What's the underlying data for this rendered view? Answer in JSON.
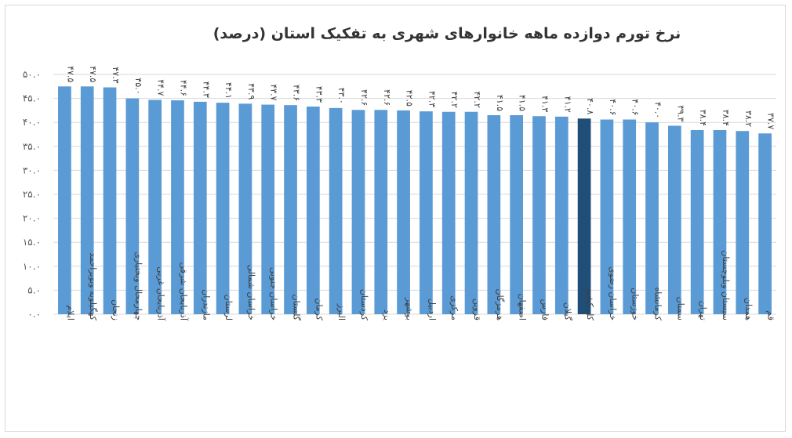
{
  "chart_data": {
    "type": "bar",
    "title": "نرخ تورم دوازده ماهه خانوارهای شهری به تفکیک استان (درصد)",
    "xlabel": "",
    "ylabel": "",
    "ylim": [
      0,
      50
    ],
    "grid": true,
    "legend": "none",
    "y_ticks": [
      "۵۰.۰",
      "۴۵.۰",
      "۴۰.۰",
      "۳۵.۰",
      "۳۰.۰",
      "۲۵.۰",
      "۲۰.۰",
      "۱۵.۰",
      "۱۰.۰",
      "۵.۰",
      "۰.۰"
    ],
    "y_tick_values": [
      50,
      45,
      40,
      35,
      30,
      25,
      20,
      15,
      10,
      5,
      0
    ],
    "categories": [
      "ایلام",
      "کهگیلویه وبویراحمد",
      "زنجان",
      "چهارمحال وبختیاری",
      "آذربایجان غربی",
      "آذربایجان شرقی",
      "مازندران",
      "لرستان",
      "خراسان شمالی",
      "خراسان جنوبی",
      "گلستان",
      "کرمان",
      "البرز",
      "کردستان",
      "یزد",
      "بوشهر",
      "اردبیل",
      "مرکزی",
      "قزوین",
      "هرمزگان",
      "اصفهان",
      "فارس",
      "گیلان",
      "کل کشور",
      "خراسان رضوی",
      "خوزستان",
      "کرمانشاه",
      "سمنان",
      "تهران",
      "سیستان وبلوچستان",
      "همدان",
      "قم"
    ],
    "values": [
      47.5,
      47.5,
      47.3,
      45.0,
      44.7,
      44.6,
      44.3,
      44.1,
      43.9,
      43.7,
      43.6,
      43.3,
      43.0,
      42.6,
      42.6,
      42.5,
      42.3,
      42.2,
      42.2,
      41.5,
      41.5,
      41.3,
      41.2,
      40.8,
      40.6,
      40.6,
      40.0,
      39.3,
      38.4,
      38.4,
      38.2,
      37.7
    ],
    "data_labels": [
      "۴۷.۵",
      "۴۷.۵",
      "۴۷.۳",
      "۴۵.۰",
      "۴۴.۷",
      "۴۴.۶",
      "۴۴.۳",
      "۴۴.۱",
      "۴۳.۹",
      "۴۳.۷",
      "۴۳.۶",
      "۴۳.۳",
      "۴۳.۰",
      "۴۲.۶",
      "۴۲.۶",
      "۴۲.۵",
      "۴۲.۳",
      "۴۲.۲",
      "۴۲.۲",
      "۴۱.۵",
      "۴۱.۵",
      "۴۱.۳",
      "۴۱.۲",
      "۴۰.۸",
      "۴۰.۶",
      "۴۰.۶",
      "۴۰.۰",
      "۳۹.۳",
      "۳۸.۴",
      "۳۸.۴",
      "۳۸.۲",
      "۳۷.۷"
    ],
    "highlight_category": "کل کشور",
    "colors": {
      "bar": "#5b9bd5",
      "highlight": "#1f4e79",
      "grid": "#d9d9d9",
      "text": "#404040"
    }
  }
}
